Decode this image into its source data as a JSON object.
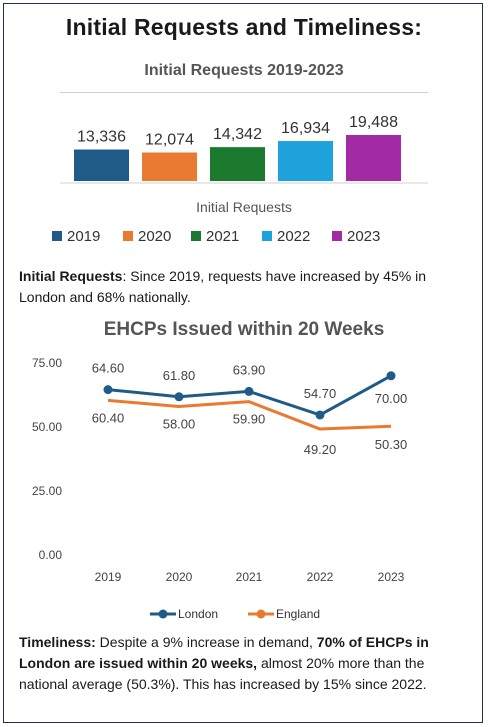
{
  "main_title": "Initial Requests and Timeliness:",
  "chart_data": [
    {
      "type": "bar",
      "title": "Initial Requests 2019-2023",
      "xlabel": "Initial Requests",
      "categories": [
        "Initial Requests"
      ],
      "series": [
        {
          "name": "2019",
          "values": [
            13336
          ],
          "label": "13,336",
          "color": "#1f5b86"
        },
        {
          "name": "2020",
          "values": [
            12074
          ],
          "label": "12,074",
          "color": "#e87a31"
        },
        {
          "name": "2021",
          "values": [
            14342
          ],
          "label": "14,342",
          "color": "#1c7a2f"
        },
        {
          "name": "2022",
          "values": [
            16934
          ],
          "label": "16,934",
          "color": "#1ea3dc"
        },
        {
          "name": "2023",
          "values": [
            19488
          ],
          "label": "19,488",
          "color": "#a22ba5"
        }
      ],
      "legend": "bottom"
    },
    {
      "type": "line",
      "title": "EHCPs Issued within 20 Weeks",
      "x": [
        "2019",
        "2020",
        "2021",
        "2022",
        "2023"
      ],
      "series": [
        {
          "name": "London",
          "values": [
            64.6,
            61.8,
            63.9,
            54.7,
            70.0
          ],
          "labels": [
            "64.60",
            "61.80",
            "63.90",
            "54.70",
            "70.00"
          ],
          "color": "#1f5b86"
        },
        {
          "name": "England",
          "values": [
            60.4,
            58.0,
            59.9,
            49.2,
            50.3
          ],
          "labels": [
            "60.40",
            "58.00",
            "59.90",
            "49.20",
            "50.30"
          ],
          "color": "#e87a31"
        }
      ],
      "y_ticks": [
        "0.00",
        "25.00",
        "50.00",
        "75.00"
      ],
      "ylim": [
        0,
        75
      ],
      "grid": false,
      "legend": "bottom"
    }
  ],
  "notes": {
    "requests": {
      "bold": "Initial Requests",
      "text": ": Since 2019,  requests have increased by 45% in London and 68% nationally."
    },
    "timeliness": {
      "bold1": "Timeliness:",
      "text1": " Despite a 9% increase in demand,  ",
      "bold2": "70% of EHCPs in London are issued within 20 weeks,",
      "text2": " almost 20% more than the national average (50.3%). This has increased by 15% since 2022."
    }
  }
}
